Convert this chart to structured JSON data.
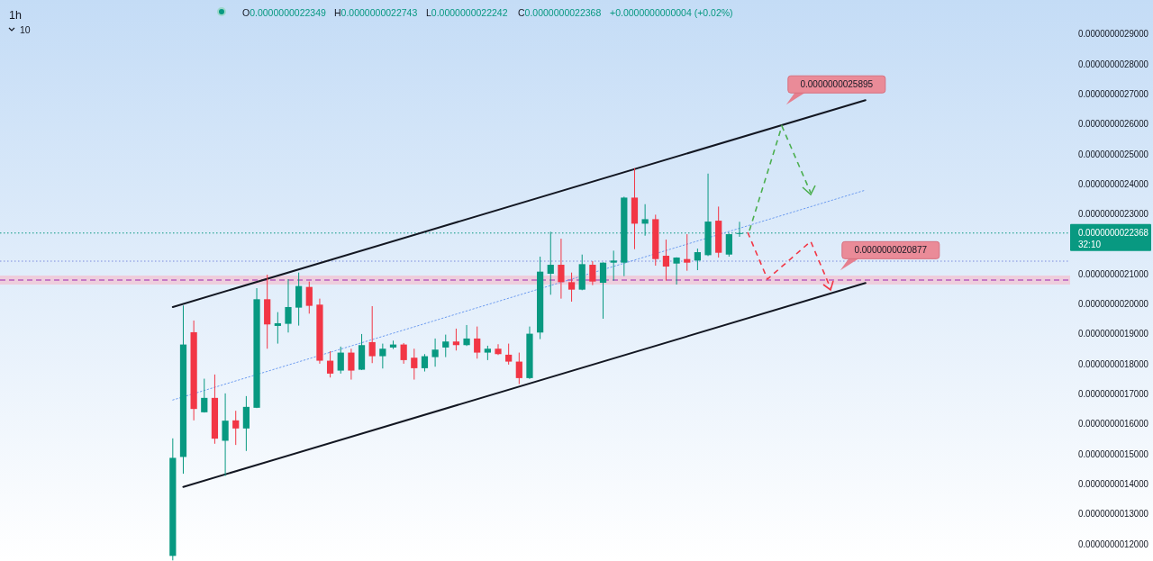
{
  "chart_data": {
    "type": "candlestick",
    "title": "1h",
    "categories": [
      null,
      null,
      null,
      null,
      null,
      null,
      null,
      null,
      null,
      null,
      null,
      null,
      null,
      null,
      null,
      null,
      null,
      null,
      null,
      null,
      null,
      null,
      null,
      null,
      null,
      null,
      null,
      null,
      null,
      null,
      null,
      null,
      null,
      null,
      null,
      null,
      null,
      null,
      null,
      null,
      null,
      null,
      null,
      null,
      null,
      null,
      null,
      null,
      null,
      null,
      null,
      null,
      null,
      null,
      null,
      null,
      null,
      null,
      null,
      null,
      null,
      null,
      null,
      null,
      null,
      null,
      null,
      null,
      null,
      null,
      null,
      null,
      null,
      null,
      null,
      null,
      null,
      null,
      null,
      null,
      null,
      null,
      null,
      null,
      null,
      null
    ],
    "ohlc": [
      [
        1.16e-09,
        1.552e-09,
        1.145e-09,
        1.487e-09
      ],
      [
        1.49e-09,
        1.995e-09,
        1.434e-09,
        1.865e-09
      ],
      [
        1.906e-09,
        1.945e-09,
        1.612e-09,
        1.65e-09
      ],
      [
        1.639e-09,
        1.751e-09,
        1.638e-09,
        1.687e-09
      ],
      [
        1.687e-09,
        1.765e-09,
        1.534e-09,
        1.551e-09
      ],
      [
        1.544e-09,
        1.702e-09,
        1.427e-09,
        1.611e-09
      ],
      [
        1.612e-09,
        1.644e-09,
        1.53e-09,
        1.585e-09
      ],
      [
        1.585e-09,
        1.693e-09,
        1.51e-09,
        1.657e-09
      ],
      [
        1.654e-09,
        2.053e-09,
        1.653e-09,
        2.016e-09
      ],
      [
        2.016e-09,
        2.098e-09,
        1.851e-09,
        1.932e-09
      ],
      [
        1.927e-09,
        1.973e-09,
        1.868e-09,
        1.936e-09
      ],
      [
        1.934e-09,
        2.083e-09,
        1.905e-09,
        1.99e-09
      ],
      [
        1.988e-09,
        2.105e-09,
        1.928e-09,
        2.06e-09
      ],
      [
        2.057e-09,
        2.075e-09,
        1.968e-09,
        1.994e-09
      ],
      [
        1.998e-09,
        2.018e-09,
        1.801e-09,
        1.811e-09
      ],
      [
        1.811e-09,
        1.843e-09,
        1.755e-09,
        1.768e-09
      ],
      [
        1.778e-09,
        1.858e-09,
        1.768e-09,
        1.838e-09
      ],
      [
        1.838e-09,
        1.851e-09,
        1.748e-09,
        1.778e-09
      ],
      [
        1.781e-09,
        1.9e-09,
        1.78e-09,
        1.863e-09
      ],
      [
        1.873e-09,
        1.993e-09,
        1.803e-09,
        1.826e-09
      ],
      [
        1.826e-09,
        1.868e-09,
        1.785e-09,
        1.851e-09
      ],
      [
        1.855e-09,
        1.878e-09,
        1.85e-09,
        1.865e-09
      ],
      [
        1.865e-09,
        1.87e-09,
        1.801e-09,
        1.813e-09
      ],
      [
        1.821e-09,
        1.851e-09,
        1.748e-09,
        1.786e-09
      ],
      [
        1.786e-09,
        1.833e-09,
        1.775e-09,
        1.826e-09
      ],
      [
        1.823e-09,
        1.885e-09,
        1.791e-09,
        1.848e-09
      ],
      [
        1.855e-09,
        1.898e-09,
        1.823e-09,
        1.875e-09
      ],
      [
        1.875e-09,
        1.918e-09,
        1.845e-09,
        1.863e-09
      ],
      [
        1.863e-09,
        1.93e-09,
        1.86e-09,
        1.885e-09
      ],
      [
        1.885e-09,
        1.925e-09,
        1.818e-09,
        1.838e-09
      ],
      [
        1.838e-09,
        1.861e-09,
        1.813e-09,
        1.851e-09
      ],
      [
        1.851e-09,
        1.866e-09,
        1.83e-09,
        1.833e-09
      ],
      [
        1.831e-09,
        1.868e-09,
        1.798e-09,
        1.808e-09
      ],
      [
        1.808e-09,
        1.838e-09,
        1.733e-09,
        1.753e-09
      ],
      [
        1.753e-09,
        1.925e-09,
        1.75e-09,
        1.901e-09
      ],
      [
        1.905e-09,
        2.158e-09,
        1.883e-09,
        2.108e-09
      ],
      [
        2.101e-09,
        2.241e-09,
        2.031e-09,
        2.131e-09
      ],
      [
        2.131e-09,
        2.218e-09,
        2.018e-09,
        2.073e-09
      ],
      [
        2.073e-09,
        2.105e-09,
        2.008e-09,
        2.048e-09
      ],
      [
        2.048e-09,
        2.165e-09,
        2.046e-09,
        2.133e-09
      ],
      [
        2.131e-09,
        2.143e-09,
        2.063e-09,
        2.075e-09
      ],
      [
        2.071e-09,
        2.139e-09,
        1.951e-09,
        2.138e-09
      ],
      [
        2.138e-09,
        2.178e-09,
        2.078e-09,
        2.145e-09
      ],
      [
        2.138e-09,
        2.358e-09,
        2.093e-09,
        2.355e-09
      ],
      [
        2.355e-09,
        2.453e-09,
        2.183e-09,
        2.268e-09
      ],
      [
        2.268e-09,
        2.333e-09,
        2.228e-09,
        2.283e-09
      ],
      [
        2.283e-09,
        2.298e-09,
        2.128e-09,
        2.15e-09
      ],
      [
        2.161e-09,
        2.215e-09,
        2.078e-09,
        2.125e-09
      ],
      [
        2.135e-09,
        2.156e-09,
        2.065e-09,
        2.155e-09
      ],
      [
        2.15e-09,
        2.233e-09,
        2.111e-09,
        2.138e-09
      ],
      [
        2.145e-09,
        2.185e-09,
        2.113e-09,
        2.173e-09
      ],
      [
        2.163e-09,
        2.435e-09,
        2.16e-09,
        2.275e-09
      ],
      [
        2.278e-09,
        2.325e-09,
        2.155e-09,
        2.171e-09
      ],
      [
        2.165e-09,
        2.235e-09,
        2.158e-09,
        2.233e-09
      ],
      [
        2.2349e-09,
        2.2743e-09,
        2.2242e-09,
        2.2368e-09
      ],
      null,
      null,
      null,
      null,
      null,
      null,
      null,
      null,
      null,
      null,
      null,
      null,
      null,
      null,
      null,
      null,
      null,
      null,
      null,
      null,
      null,
      null,
      null,
      null,
      null,
      null,
      null,
      null,
      null,
      null,
      null
    ],
    "series": [
      {
        "type": "line",
        "color": "#131722",
        "line_style": "solid",
        "values": [
          1.99e-09,
          null,
          null,
          null,
          null,
          null,
          null,
          null,
          null,
          null,
          null,
          null,
          null,
          null,
          null,
          null,
          null,
          null,
          null,
          null,
          null,
          null,
          null,
          null,
          null,
          null,
          null,
          null,
          null,
          null,
          null,
          null,
          null,
          null,
          null,
          null,
          null,
          null,
          null,
          null,
          null,
          null,
          null,
          null,
          null,
          null,
          null,
          null,
          null,
          null,
          null,
          null,
          null,
          null,
          null,
          null,
          null,
          null,
          null,
          null,
          null,
          null,
          null,
          null,
          null,
          null,
          2.68e-09,
          null,
          null,
          null,
          null,
          null,
          null,
          null,
          null,
          null,
          null,
          null,
          null,
          null,
          null,
          null,
          null,
          null,
          null,
          null
        ]
      },
      {
        "type": "line",
        "color": "#131722",
        "line_style": "solid",
        "values": [
          null,
          1.39e-09,
          null,
          null,
          null,
          null,
          null,
          null,
          null,
          null,
          null,
          null,
          null,
          null,
          null,
          null,
          null,
          null,
          null,
          null,
          null,
          null,
          null,
          null,
          null,
          null,
          null,
          null,
          null,
          null,
          null,
          null,
          null,
          null,
          null,
          null,
          null,
          null,
          null,
          null,
          null,
          null,
          null,
          null,
          null,
          null,
          null,
          null,
          null,
          null,
          null,
          null,
          null,
          null,
          null,
          null,
          null,
          null,
          null,
          null,
          null,
          null,
          null,
          null,
          null,
          null,
          2.07e-09,
          null,
          null,
          null,
          null,
          null,
          null,
          null,
          null,
          null,
          null,
          null,
          null,
          null,
          null,
          null,
          null,
          null,
          null,
          null
        ]
      },
      {
        "type": "line",
        "color": "#6d9cf0",
        "line_style": "dotted",
        "values": [
          1.68e-09,
          null,
          null,
          null,
          null,
          null,
          null,
          null,
          null,
          null,
          null,
          null,
          null,
          null,
          null,
          null,
          null,
          null,
          null,
          null,
          null,
          null,
          null,
          null,
          null,
          null,
          null,
          null,
          null,
          null,
          null,
          null,
          null,
          null,
          null,
          null,
          null,
          null,
          null,
          null,
          null,
          null,
          null,
          null,
          null,
          null,
          null,
          null,
          null,
          null,
          null,
          null,
          null,
          null,
          null,
          null,
          null,
          null,
          null,
          null,
          null,
          null,
          null,
          null,
          null,
          null,
          2.38e-09,
          null,
          null,
          null,
          null,
          null,
          null,
          null,
          null,
          null,
          null,
          null,
          null,
          null,
          null,
          null,
          null,
          null,
          null,
          null
        ]
      }
    ],
    "ylim": [
      1.143e-09,
      3.014e-09
    ],
    "yticks": [
      {
        "value": 1.2e-09,
        "label": "0.0000000012000"
      },
      {
        "value": 1.3e-09,
        "label": "0.0000000013000"
      },
      {
        "value": 1.4e-09,
        "label": "0.0000000014000"
      },
      {
        "value": 1.5e-09,
        "label": "0.0000000015000"
      },
      {
        "value": 1.6e-09,
        "label": "0.0000000016000"
      },
      {
        "value": 1.7e-09,
        "label": "0.0000000017000"
      },
      {
        "value": 1.8e-09,
        "label": "0.0000000018000"
      },
      {
        "value": 1.9e-09,
        "label": "0.0000000019000"
      },
      {
        "value": 2e-09,
        "label": "0.0000000020000"
      },
      {
        "value": 2.1e-09,
        "label": "0.0000000021000"
      },
      {
        "value": 2.3e-09,
        "label": "0.0000000023000"
      },
      {
        "value": 2.4e-09,
        "label": "0.0000000024000"
      },
      {
        "value": 2.5e-09,
        "label": "0.0000000025000"
      },
      {
        "value": 2.6e-09,
        "label": "0.0000000026000"
      },
      {
        "value": 2.7e-09,
        "label": "0.0000000027000"
      },
      {
        "value": 2.8e-09,
        "label": "0.0000000028000"
      },
      {
        "value": 2.9e-09,
        "label": "0.0000000029000"
      }
    ],
    "tick_labels": "y",
    "ref_lines": [
      {
        "axis": "y",
        "value": 2.2368e-09,
        "label": "0.0000000022368",
        "color": "#089981",
        "line_style": "dotted"
      },
      {
        "axis": "y",
        "value": 2.143e-09,
        "color": "#7b8cde",
        "line_style": "dotted"
      },
      {
        "axis": "y",
        "value": 2.08e-09,
        "color": "#9c27b0",
        "line_style": "dashed"
      }
    ],
    "bands": [
      {
        "axis": "y",
        "from": 2.065e-09,
        "to": 2.095e-09,
        "color": "#f7b8c8"
      }
    ],
    "annotations": [
      "0.0000000025895",
      "0.0000000020877",
      "32:10",
      "10",
      "O0.0000000022349",
      "H0.0000000022743",
      "L0.0000000022242",
      "C0.0000000022368",
      "+0.0000000000004 (+0.02%)"
    ]
  }
}
